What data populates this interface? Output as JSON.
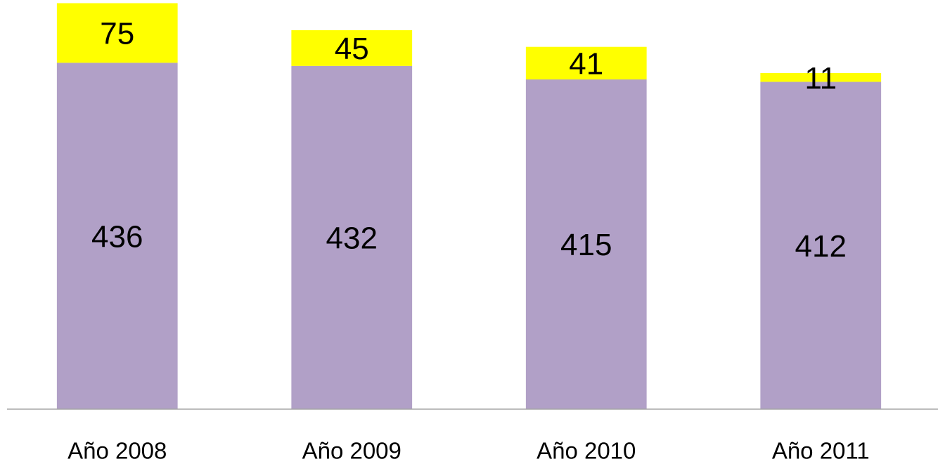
{
  "chart_data": {
    "type": "stacked_bar",
    "categories": [
      "Año 2008",
      "Año 2009",
      "Año 2010",
      "Año 2011"
    ],
    "series": [
      {
        "color": "#b1a0c7",
        "values": [
          436,
          432,
          415,
          412
        ]
      },
      {
        "color": "#ffff00",
        "values": [
          75,
          45,
          41,
          11
        ]
      }
    ],
    "ylim": [
      0,
      515
    ]
  }
}
